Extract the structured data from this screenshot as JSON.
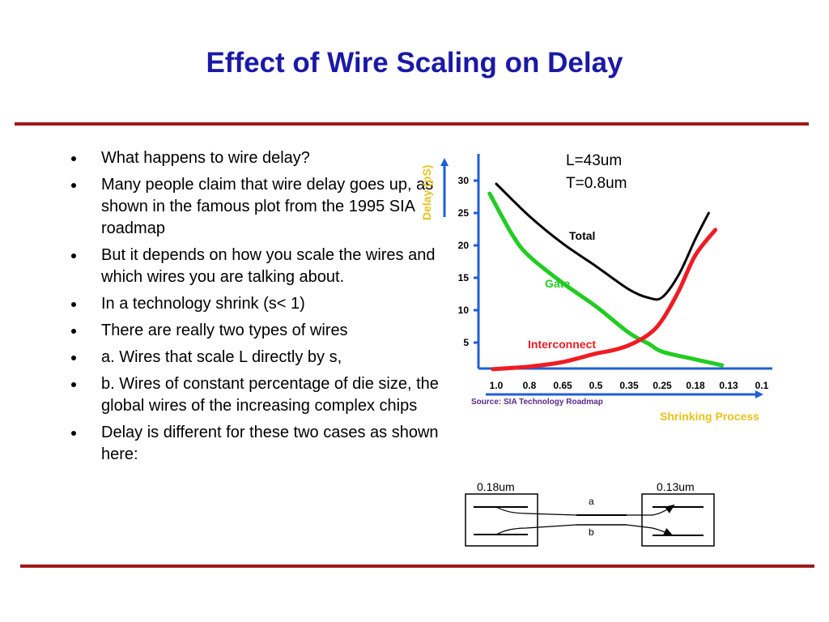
{
  "slide": {
    "title": "Effect of Wire Scaling on Delay",
    "bullets": [
      "What happens to wire delay?",
      "Many people claim that wire delay goes up, as shown in the famous plot from the 1995 SIA roadmap",
      "But it depends on how you scale the wires and which wires you are talking about.",
      "In a technology shrink (s< 1)",
      "There are really two types of wires",
      "a. Wires that scale L directly by s,",
      "b. Wires of constant percentage of die size, the global wires of the increasing complex chips",
      "Delay is different for these two cases  as shown here:"
    ],
    "bullet_color": "#000000",
    "title_color": "#1a1aa6",
    "rule_color": "#a01818"
  },
  "chart_data": {
    "type": "line",
    "ylabel": "Delay (pS)",
    "xlabel": "Shrinking Process",
    "source": "Source: SIA Technology Roadmap",
    "annotation": [
      "L=43um",
      "T=0.8um"
    ],
    "categories": [
      "1.0",
      "0.8",
      "0.65",
      "0.5",
      "0.35",
      "0.25",
      "0.18",
      "0.13",
      "0.1"
    ],
    "yticks": [
      "5",
      "10",
      "15",
      "20",
      "25",
      "30"
    ],
    "ylim": [
      0,
      33
    ],
    "grid": false,
    "series": [
      {
        "name": "Total",
        "color": "#000000",
        "x": [
          0,
          1,
          2,
          3,
          4,
          4.6,
          5,
          5.5,
          6,
          6.4
        ],
        "values": [
          29.5,
          24.5,
          20.3,
          16.8,
          13.2,
          11.9,
          12.0,
          15.5,
          21,
          25
        ]
      },
      {
        "name": "Gate",
        "color": "#22cc22",
        "x": [
          -0.2,
          0.5,
          1,
          2,
          3,
          4,
          4.6,
          5,
          6,
          6.8
        ],
        "values": [
          28,
          21.5,
          18.3,
          14.2,
          10.6,
          6.5,
          4.8,
          3.6,
          2.4,
          1.5
        ]
      },
      {
        "name": "Interconnect",
        "color": "#ee1c24",
        "x": [
          -0.1,
          1,
          2,
          3,
          3.5,
          4,
          4.6,
          5,
          5.5,
          6,
          6.6
        ],
        "values": [
          0.9,
          1.3,
          2.0,
          3.3,
          3.8,
          4.6,
          6.3,
          8.5,
          13,
          18.5,
          22.4
        ]
      }
    ],
    "label_colors": {
      "Total": "#000000",
      "Gate": "#22cc22",
      "Interconnect": "#ee1c24"
    },
    "axis_color": "#1f5fd6",
    "ylabel_color": "#e8c21b",
    "xlabel_color": "#e8c21b",
    "source_color": "#5a2a8a"
  },
  "diagram": {
    "left_label": "0.18um",
    "right_label": "0.13um",
    "wire_a": "a",
    "wire_b": "b"
  }
}
